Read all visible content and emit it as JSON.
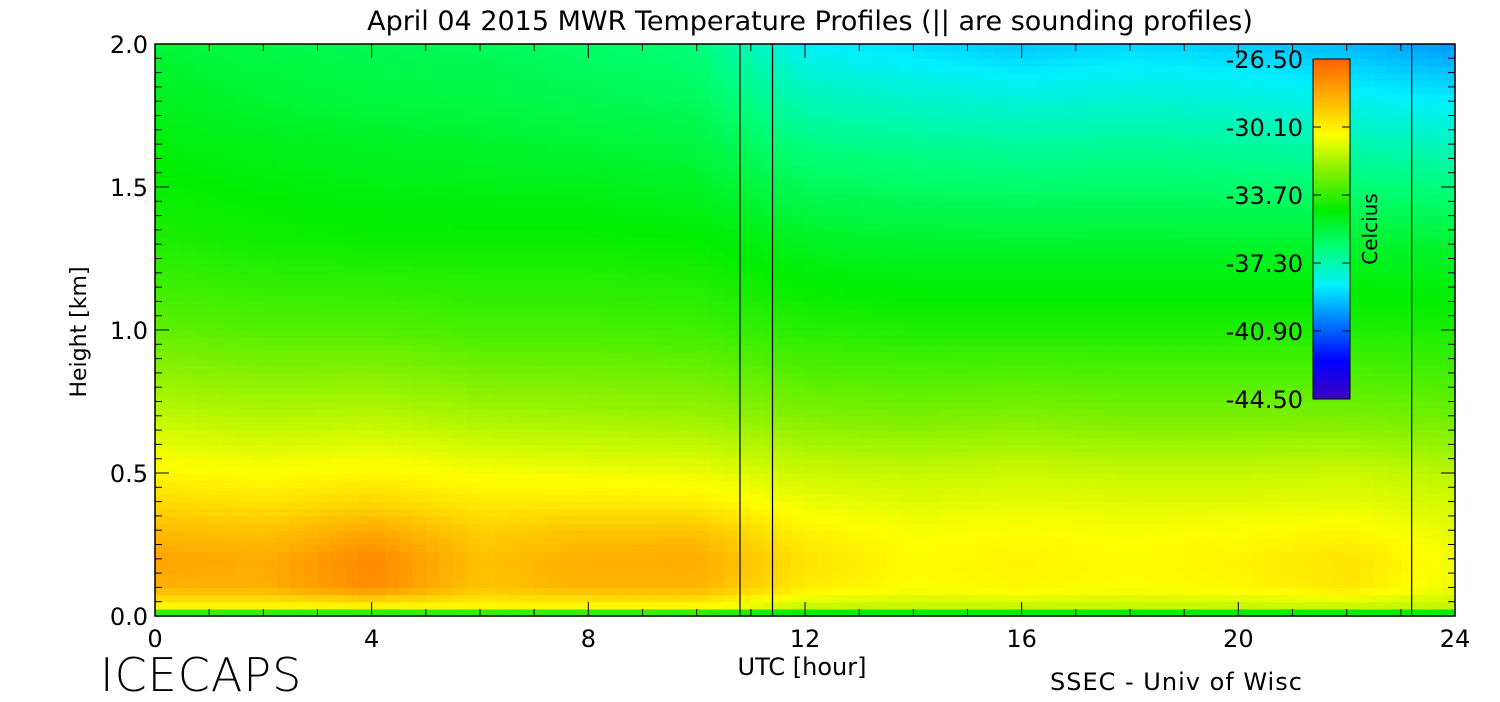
{
  "chart_data": {
    "type": "heatmap",
    "title": "April 04 2015 MWR Temperature Profiles (|| are sounding profiles)",
    "xlabel": "UTC [hour]",
    "ylabel": "Height [km]",
    "xlim": [
      0,
      24
    ],
    "ylim": [
      0.0,
      2.0
    ],
    "x_ticks": [
      "0",
      "4",
      "8",
      "12",
      "16",
      "20",
      "24"
    ],
    "y_ticks": [
      "0.0",
      "0.5",
      "1.0",
      "1.5",
      "2.0"
    ],
    "x_tick_values": [
      0,
      4,
      8,
      12,
      16,
      20,
      24
    ],
    "y_tick_values": [
      0.0,
      0.5,
      1.0,
      1.5,
      2.0
    ],
    "colorbar": {
      "label": "Celcius",
      "ticks": [
        "-26.50",
        "-30.10",
        "-33.70",
        "-37.30",
        "-40.90",
        "-44.50"
      ],
      "tick_values": [
        -26.5,
        -30.1,
        -33.7,
        -37.3,
        -40.9,
        -44.5
      ],
      "range": [
        -44.5,
        -26.5
      ]
    },
    "sounding_times": [
      10.8,
      11.4,
      23.2
    ],
    "colormap": [
      "#4000c0",
      "#0000ff",
      "#0078ff",
      "#00f0ff",
      "#00ff78",
      "#00ee00",
      "#80f000",
      "#ffff00",
      "#ffb000",
      "#ff6000"
    ],
    "heights": [
      0.0,
      0.03,
      0.1,
      0.2,
      0.3,
      0.4,
      0.5,
      0.7,
      1.0,
      1.3,
      1.6,
      1.8,
      2.0
    ],
    "times": [
      0,
      2,
      4,
      6,
      8,
      10,
      12,
      14,
      16,
      18,
      20,
      22,
      24
    ],
    "temperature_grid": [
      [
        -36.0,
        -36.0,
        -36.0,
        -36.0,
        -36.0,
        -36.0,
        -36.5,
        -36.5,
        -36.5,
        -36.5,
        -36.5,
        -36.5,
        -36.5
      ],
      [
        -30.5,
        -30.5,
        -30.5,
        -30.5,
        -30.5,
        -30.5,
        -31.5,
        -31.5,
        -31.5,
        -31.5,
        -31.5,
        -31.5,
        -31.5
      ],
      [
        -28.5,
        -28.5,
        -27.6,
        -29.0,
        -28.6,
        -28.6,
        -30.0,
        -30.5,
        -30.3,
        -30.5,
        -30.3,
        -29.9,
        -30.8
      ],
      [
        -28.2,
        -28.4,
        -27.5,
        -28.9,
        -28.5,
        -28.4,
        -29.8,
        -30.4,
        -30.2,
        -30.4,
        -30.2,
        -29.8,
        -30.7
      ],
      [
        -28.8,
        -29.0,
        -28.3,
        -29.3,
        -29.0,
        -29.0,
        -30.2,
        -30.6,
        -30.5,
        -30.6,
        -30.5,
        -30.3,
        -30.9
      ],
      [
        -29.6,
        -29.8,
        -29.5,
        -30.0,
        -30.0,
        -30.1,
        -30.8,
        -31.0,
        -30.9,
        -31.0,
        -31.0,
        -30.9,
        -31.2
      ],
      [
        -30.3,
        -30.5,
        -30.3,
        -30.6,
        -30.7,
        -30.8,
        -31.3,
        -31.4,
        -31.3,
        -31.4,
        -31.4,
        -31.3,
        -31.6
      ],
      [
        -31.5,
        -31.7,
        -31.6,
        -31.9,
        -32.0,
        -32.1,
        -32.5,
        -32.6,
        -32.5,
        -32.6,
        -32.6,
        -32.6,
        -32.8
      ],
      [
        -33.0,
        -33.2,
        -33.2,
        -33.4,
        -33.4,
        -33.5,
        -33.9,
        -34.0,
        -34.0,
        -34.0,
        -34.0,
        -34.0,
        -34.1
      ],
      [
        -34.0,
        -34.2,
        -34.3,
        -34.3,
        -34.3,
        -34.4,
        -35.0,
        -35.2,
        -35.2,
        -35.2,
        -35.2,
        -35.2,
        -35.3
      ],
      [
        -34.6,
        -34.8,
        -35.0,
        -35.1,
        -35.2,
        -35.4,
        -36.4,
        -36.6,
        -36.8,
        -36.7,
        -36.8,
        -37.0,
        -37.2
      ],
      [
        -35.0,
        -35.3,
        -35.5,
        -35.6,
        -35.8,
        -36.0,
        -37.4,
        -37.7,
        -37.9,
        -37.8,
        -37.9,
        -38.2,
        -38.5
      ],
      [
        -35.4,
        -35.7,
        -35.9,
        -36.0,
        -36.2,
        -36.5,
        -38.4,
        -38.8,
        -39.2,
        -38.9,
        -39.1,
        -39.4,
        -40.0
      ]
    ]
  },
  "footer": {
    "brand": "ICECAPS",
    "credit": "SSEC - Univ of Wisc"
  }
}
